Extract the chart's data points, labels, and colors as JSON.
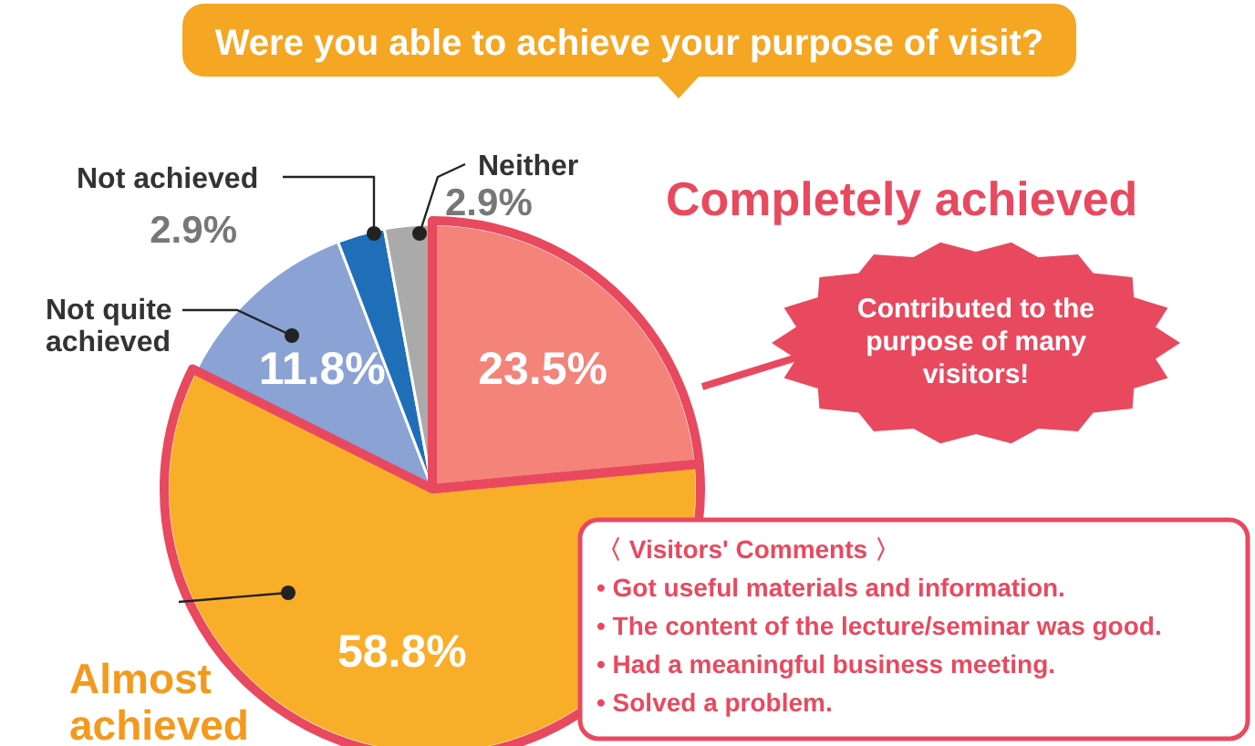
{
  "chart_data": {
    "type": "pie",
    "title": "Were you able to achieve your purpose of visit?",
    "categories": [
      "Completely achieved",
      "Almost achieved",
      "Not quite achieved",
      "Not achieved",
      "Neither"
    ],
    "values": [
      23.5,
      58.8,
      11.8,
      2.9,
      2.9
    ],
    "colors": [
      "#f4837a",
      "#f9ae2a",
      "#8aa3d4",
      "#1f6fb8",
      "#aaaaaa"
    ],
    "value_labels": [
      "23.5%",
      "58.8%",
      "11.8%",
      "2.9%",
      "2.9%"
    ],
    "annotations": [
      "Contributed to the purpose of many visitors!",
      "〈 Visitors' Comments 〉",
      "• Got useful materials and information.",
      "• The content of the lecture/seminar was good.",
      "• Had a meaningful business meeting.",
      "• Solved a problem."
    ]
  }
}
